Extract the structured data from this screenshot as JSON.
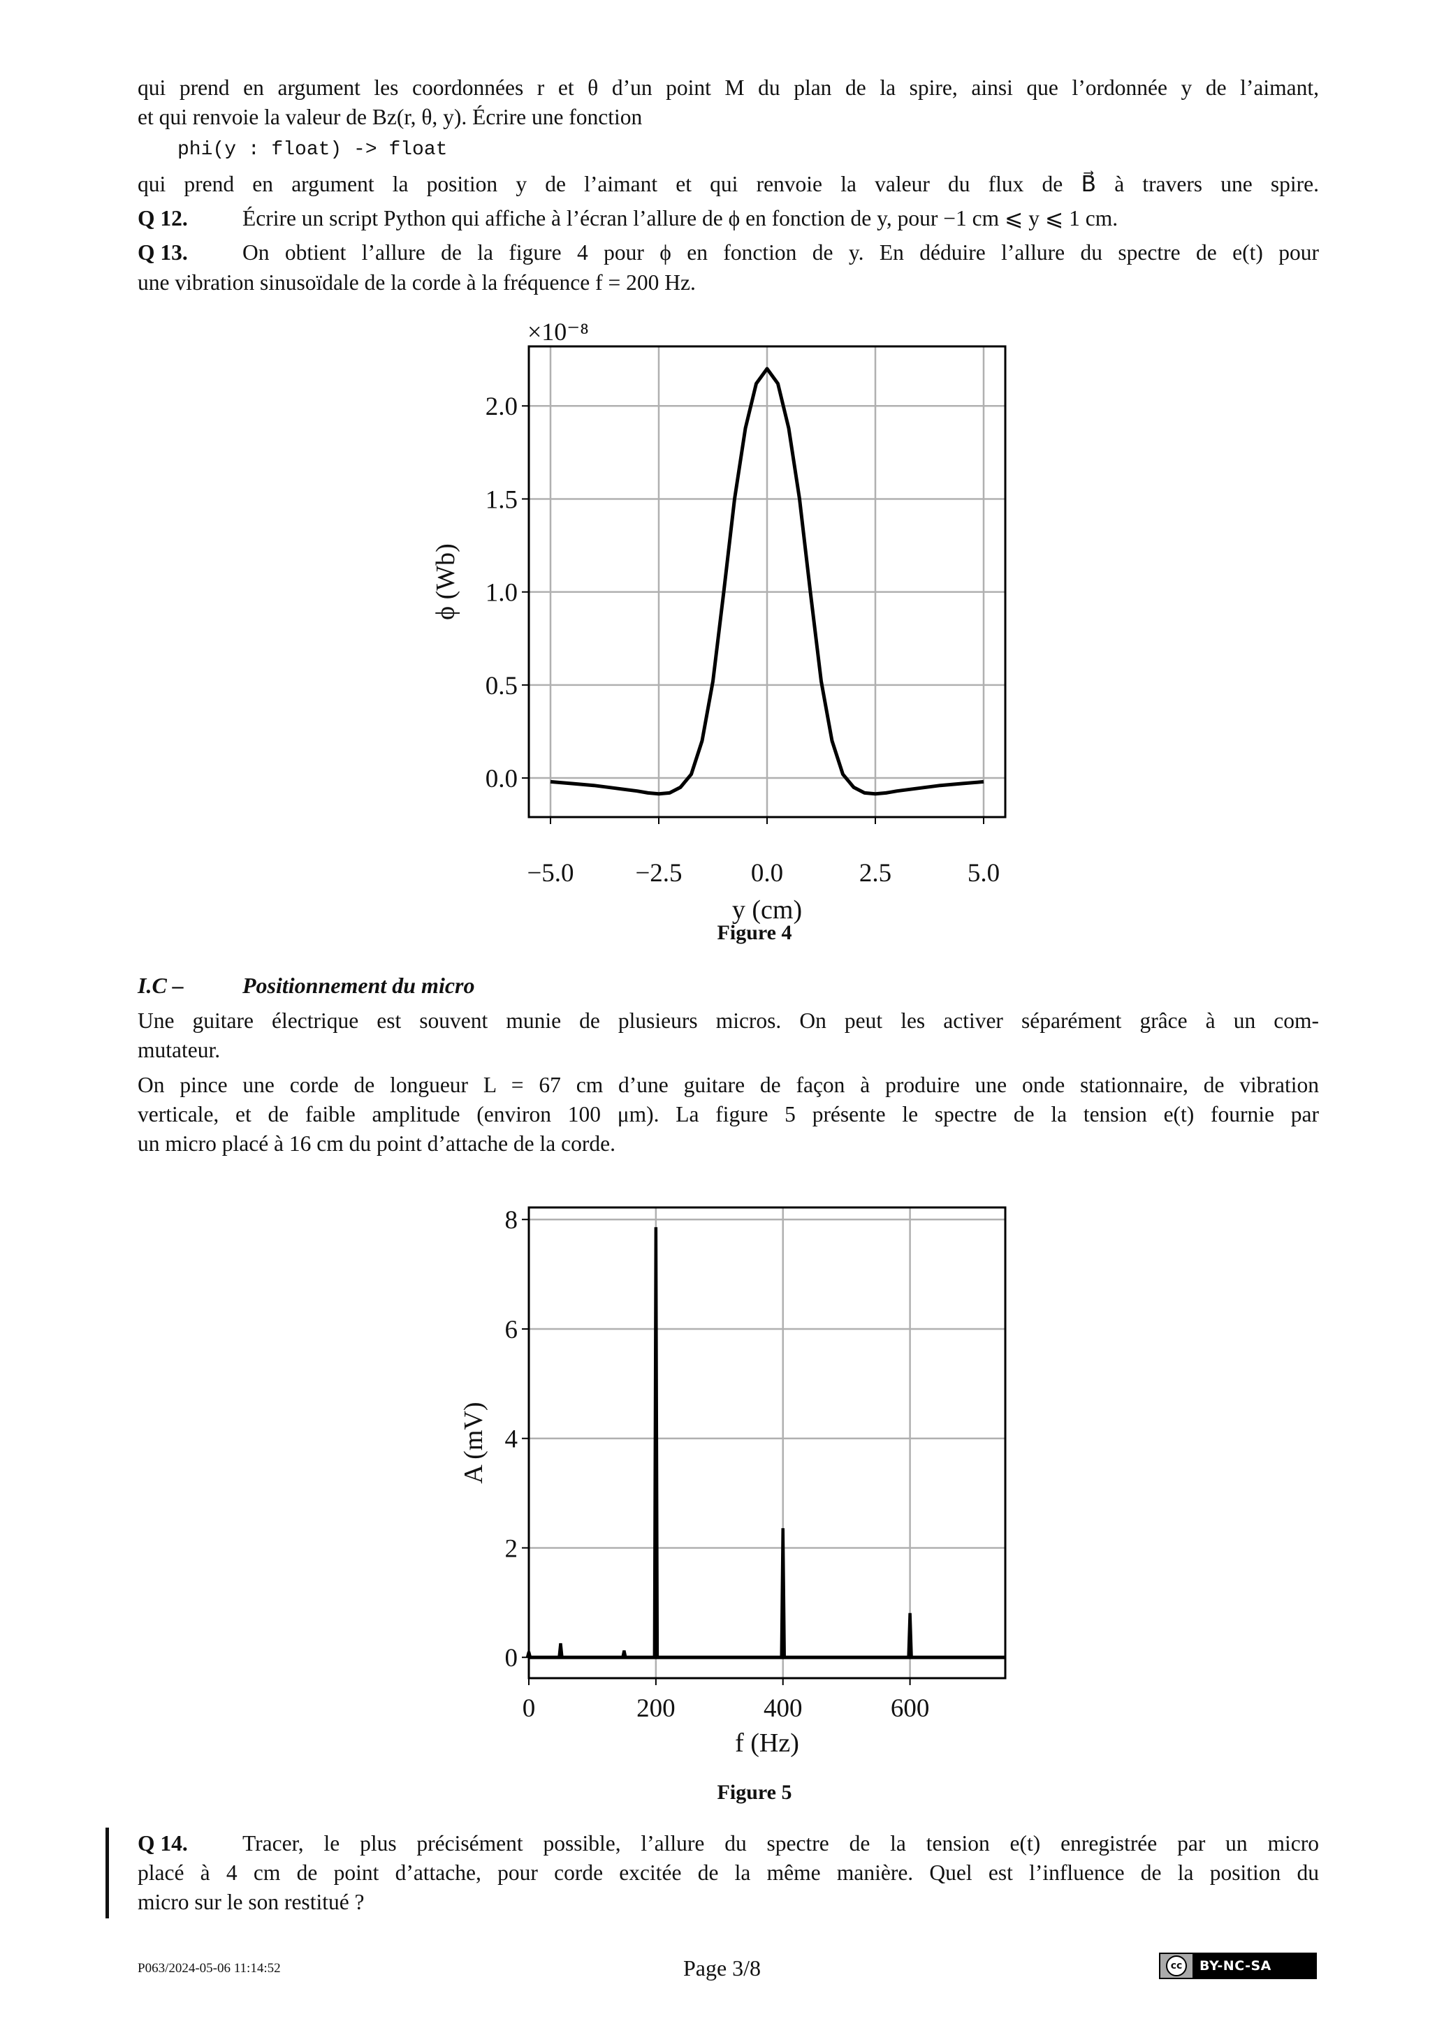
{
  "text": {
    "l1": "qui prend en argument les coordonnées r et θ d’un point M du plan de la spire, ainsi que l’ordonnée y de l’aimant,",
    "l2": "et qui renvoie la valeur de Bz(r, θ, y). Écrire une fonction",
    "code": "phi(y : float) -> float",
    "l4": "qui prend en argument la position y de l’aimant et qui renvoie la valeur du flux de B⃗ à travers une spire.",
    "q12_label": "Q 12.",
    "q12": "Écrire un script Python qui affiche à l’écran l’allure de ϕ en fonction de y, pour −1 cm ⩽ y ⩽ 1 cm.",
    "q13_label": "Q 13.",
    "q13a": "On obtient l’allure de la figure 4 pour ϕ en fonction de y. En déduire l’allure du spectre de e(t) pour",
    "q13b": "une vibration sinusoïdale de la corde à la fréquence f = 200 Hz.",
    "fig4_caption": "Figure 4",
    "section_num": "I.C –",
    "section_title": "Positionnement du micro",
    "p1a": "Une guitare électrique est souvent munie de plusieurs micros. On peut les activer séparément grâce à un com-",
    "p1b": "mutateur.",
    "p2a": "On pince une corde de longueur L = 67 cm d’une guitare de façon à produire une onde stationnaire, de vibration",
    "p2b": "verticale, et de faible amplitude (environ 100 μm). La figure 5 présente le spectre de la tension e(t) fournie par",
    "p2c": "un micro placé à 16 cm du point d’attache de la corde.",
    "fig5_caption": "Figure 5",
    "q14_label": "Q 14.",
    "q14a": "Tracer, le plus précisément possible, l’allure du spectre de la tension e(t) enregistrée par un micro",
    "q14b": "placé à 4 cm de point d’attache, pour corde excitée de la même manière. Quel est l’influence de la position du",
    "q14c": "micro sur le son restitué ?"
  },
  "footer": {
    "id": "P063/2024-05-06 11:14:52",
    "page": "Page 3/8",
    "license": "BY-NC-SA",
    "license_icon": "cc"
  },
  "chart_data": [
    {
      "type": "line",
      "title": "",
      "xlabel": "y (cm)",
      "ylabel": "ϕ (Wb)",
      "y_multiplier": "×10⁻⁸",
      "xlim": [
        -5.5,
        5.5
      ],
      "ylim": [
        -0.21,
        2.32
      ],
      "grid": true,
      "color": "#000000",
      "xticks": [
        -5.0,
        -2.5,
        0.0,
        2.5,
        5.0
      ],
      "xtick_labels": [
        "−5.0",
        "−2.5",
        "0.0",
        "2.5",
        "5.0"
      ],
      "yticks": [
        0.0,
        0.5,
        1.0,
        1.5,
        2.0
      ],
      "ytick_labels": [
        "0.0",
        "0.5",
        "1.0",
        "1.5",
        "2.0"
      ],
      "x": [
        -5,
        -4.5,
        -4,
        -3.5,
        -3,
        -2.75,
        -2.5,
        -2.25,
        -2,
        -1.75,
        -1.5,
        -1.25,
        -1,
        -0.75,
        -0.5,
        -0.25,
        0,
        0.25,
        0.5,
        0.75,
        1,
        1.25,
        1.5,
        1.75,
        2,
        2.25,
        2.5,
        2.75,
        3,
        3.5,
        4,
        4.5,
        5
      ],
      "y": [
        -0.02,
        -0.03,
        -0.04,
        -0.055,
        -0.07,
        -0.08,
        -0.085,
        -0.08,
        -0.05,
        0.02,
        0.2,
        0.52,
        1.0,
        1.5,
        1.88,
        2.12,
        2.2,
        2.12,
        1.88,
        1.5,
        1.0,
        0.52,
        0.2,
        0.02,
        -0.05,
        -0.08,
        -0.085,
        -0.08,
        -0.07,
        -0.055,
        -0.04,
        -0.03,
        -0.02
      ]
    },
    {
      "type": "line",
      "title": "",
      "xlabel": "f (Hz)",
      "ylabel": "A (mV)",
      "xlim": [
        0,
        750
      ],
      "ylim": [
        -0.38,
        8.22
      ],
      "grid": true,
      "color": "#000000",
      "xticks": [
        0,
        200,
        400,
        600
      ],
      "xtick_labels": [
        "0",
        "200",
        "400",
        "600"
      ],
      "yticks": [
        0,
        2,
        4,
        6,
        8
      ],
      "ytick_labels": [
        "0",
        "2",
        "4",
        "6",
        "8"
      ],
      "peaks": [
        {
          "f": 0,
          "A": 0.1
        },
        {
          "f": 50,
          "A": 0.25
        },
        {
          "f": 150,
          "A": 0.12
        },
        {
          "f": 200,
          "A": 7.85
        },
        {
          "f": 400,
          "A": 2.35
        },
        {
          "f": 600,
          "A": 0.8
        }
      ]
    }
  ]
}
